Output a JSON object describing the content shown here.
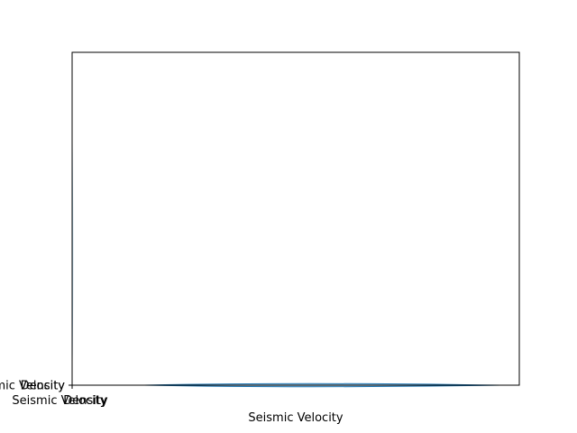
{
  "chart_data": {
    "type": "violin",
    "title": "",
    "xlabel": "Seismic Velocity",
    "ylabel": "",
    "x_tick_labels": [
      "Seismic Velocity",
      "Density"
    ],
    "y_tick_labels": [
      "Seismic Velocity",
      "Density"
    ],
    "series": [
      {
        "color": "#1f77b4",
        "y_range_visible": [
          0,
          1
        ],
        "distribution_shape": "very flat violin lying along the bottom edge of the axes"
      }
    ],
    "grid": false,
    "legend": "none"
  },
  "colors": {
    "violin_edge": "#1f77b4",
    "axes": "#000000",
    "background": "#ffffff"
  }
}
